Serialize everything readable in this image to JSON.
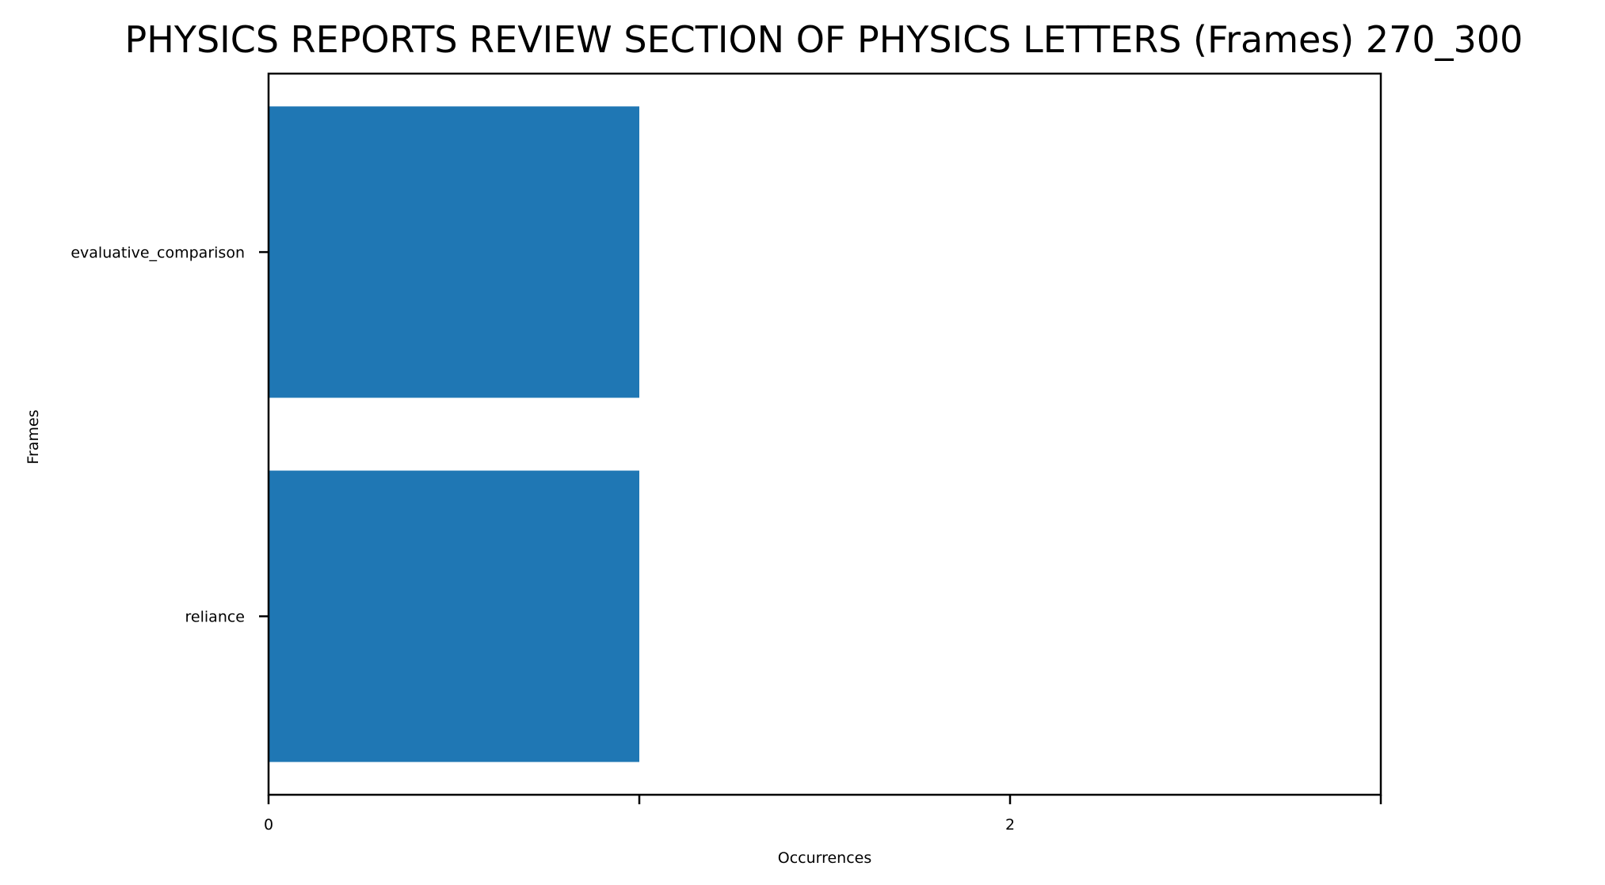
{
  "chart_data": {
    "type": "bar",
    "orientation": "horizontal",
    "title": "PHYSICS REPORTS REVIEW SECTION OF PHYSICS LETTERS (Frames) 270_300",
    "xlabel": "Occurrences",
    "ylabel": "Frames",
    "categories": [
      "evaluative_comparison",
      "reliance"
    ],
    "values": [
      1,
      1
    ],
    "xlim": [
      0,
      3
    ],
    "x_ticks": [
      0,
      1,
      2,
      3
    ],
    "x_tick_labels": [
      "0",
      "",
      "2",
      ""
    ],
    "bar_color": "#1f77b4",
    "grid": false,
    "legend": "none"
  }
}
